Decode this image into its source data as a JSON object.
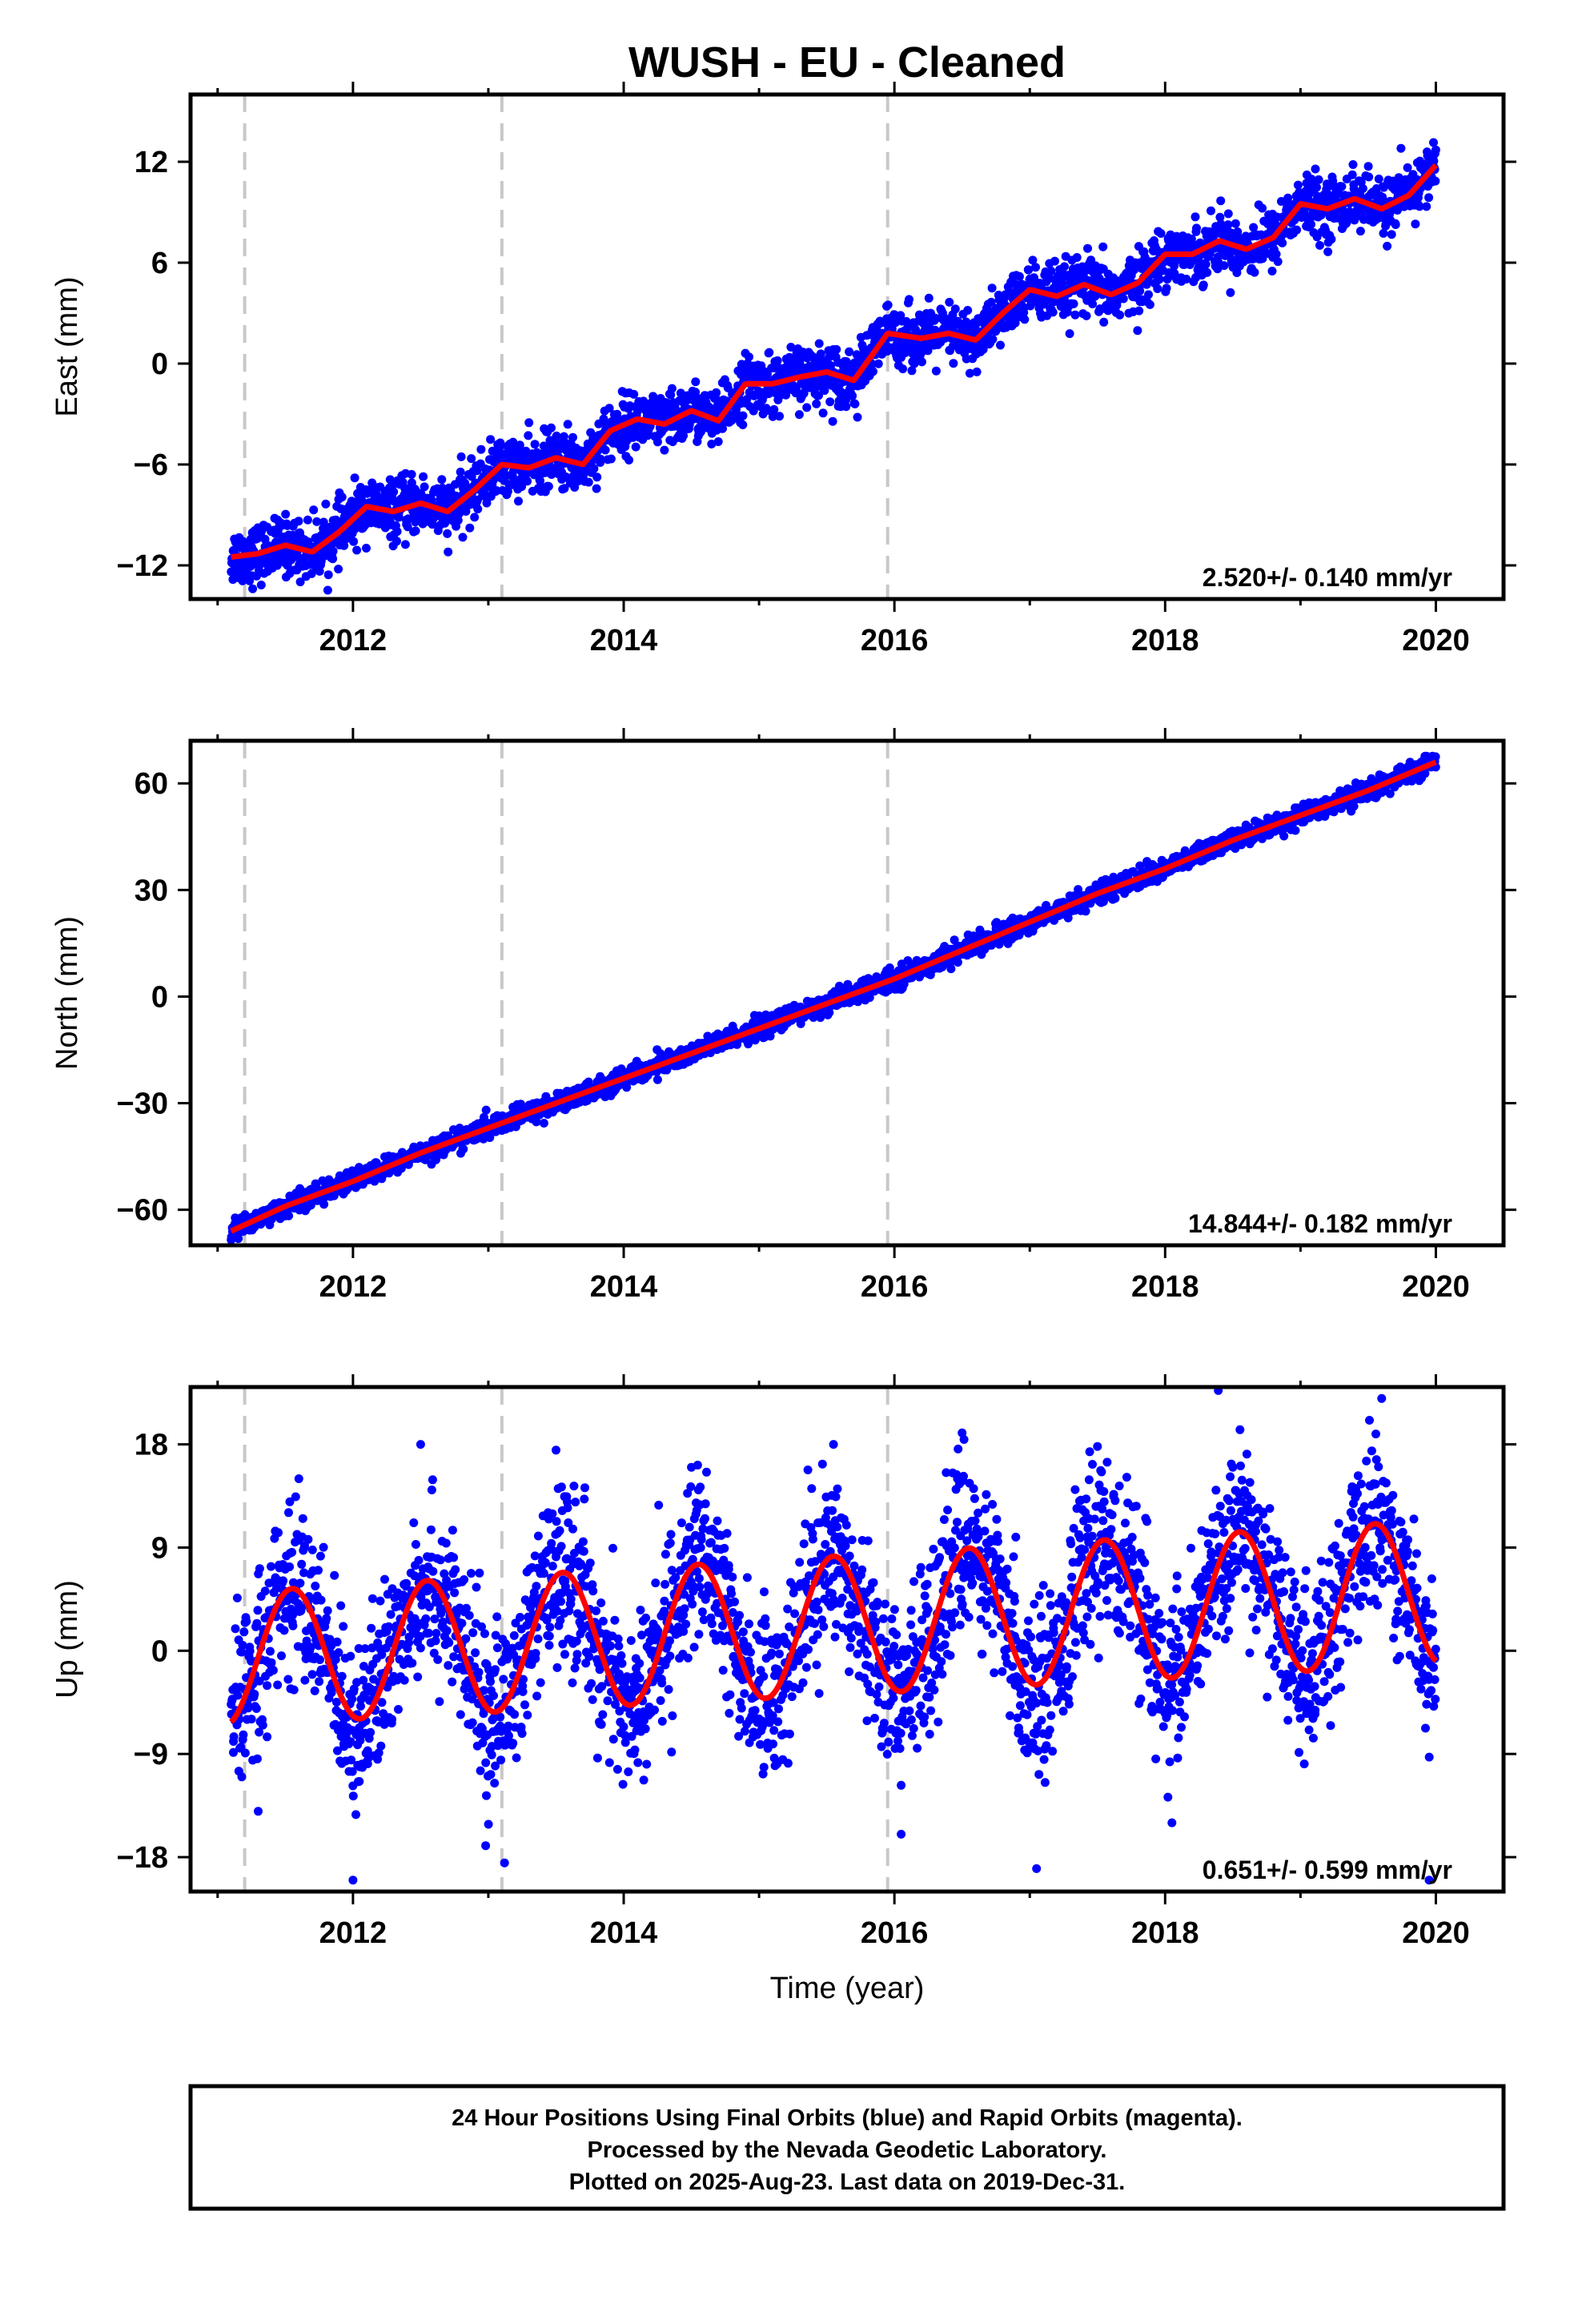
{
  "title": "WUSH  - EU - Cleaned",
  "x_axis_label": "Time (year)",
  "x_ticks": [
    2012,
    2014,
    2016,
    2018,
    2020
  ],
  "colors": {
    "observations": "#0000ff",
    "model": "#ff0000",
    "offset_lines": "#c8c8c8",
    "frame": "#000000"
  },
  "offset_epochs": [
    2011.2,
    2013.1,
    2015.95
  ],
  "chart_data": [
    {
      "type": "scatter",
      "panel": "east",
      "ylabel": "East (mm)",
      "ylim": [
        -14,
        16
      ],
      "xlim": [
        2010.8,
        2020.5
      ],
      "yticks": [
        -12,
        -6,
        0,
        6,
        12
      ],
      "rate_text": "2.520+/- 0.140 mm/yr",
      "x_range_data": [
        2011.1,
        2020.0
      ],
      "series": [
        {
          "name": "",
          "type": "line",
          "x": [
            2011.1,
            2011.3,
            2011.5,
            2011.7,
            2011.9,
            2012.1,
            2012.3,
            2012.5,
            2012.7,
            2012.9,
            2013.1,
            2013.3,
            2013.5,
            2013.7,
            2013.9,
            2014.1,
            2014.3,
            2014.5,
            2014.7,
            2014.9,
            2015.1,
            2015.3,
            2015.5,
            2015.7,
            2015.95,
            2016.2,
            2016.4,
            2016.6,
            2016.8,
            2017.0,
            2017.2,
            2017.4,
            2017.6,
            2017.8,
            2018.0,
            2018.2,
            2018.4,
            2018.6,
            2018.8,
            2019.0,
            2019.2,
            2019.4,
            2019.6,
            2019.8,
            2020.0
          ],
          "values": [
            -11.5,
            -11.3,
            -10.8,
            -11.2,
            -10.0,
            -8.5,
            -8.8,
            -8.3,
            -8.8,
            -7.5,
            -6.0,
            -6.2,
            -5.6,
            -6.0,
            -4.0,
            -3.3,
            -3.6,
            -2.8,
            -3.4,
            -1.2,
            -1.2,
            -0.8,
            -0.5,
            -1.0,
            1.8,
            1.5,
            1.8,
            1.4,
            3.0,
            4.4,
            4.0,
            4.7,
            4.1,
            4.8,
            6.5,
            6.5,
            7.3,
            6.8,
            7.5,
            9.5,
            9.2,
            9.8,
            9.2,
            10.0,
            11.8
          ]
        }
      ]
    },
    {
      "type": "scatter",
      "panel": "north",
      "ylabel": "North (mm)",
      "ylim": [
        -70,
        72
      ],
      "xlim": [
        2010.8,
        2020.5
      ],
      "yticks": [
        -60,
        -30,
        0,
        30,
        60
      ],
      "rate_text": "14.844+/- 0.182 mm/yr",
      "x_range_data": [
        2011.1,
        2020.0
      ],
      "series": [
        {
          "name": "",
          "type": "line",
          "x": [
            2011.1,
            2011.5,
            2012.0,
            2012.5,
            2013.0,
            2013.5,
            2014.0,
            2014.5,
            2015.0,
            2015.5,
            2016.0,
            2016.5,
            2017.0,
            2017.5,
            2018.0,
            2018.5,
            2019.0,
            2019.5,
            2020.0
          ],
          "values": [
            -66,
            -59,
            -52,
            -44,
            -37,
            -30,
            -23,
            -16,
            -9,
            -2,
            5,
            13,
            21,
            29,
            36,
            44,
            51,
            58,
            66
          ]
        }
      ]
    },
    {
      "type": "scatter",
      "panel": "up",
      "ylabel": "Up (mm)",
      "ylim": [
        -21,
        23
      ],
      "xlim": [
        2010.8,
        2020.5
      ],
      "yticks": [
        -18,
        -9,
        0,
        9,
        18
      ],
      "rate_text": "0.651+/- 0.599 mm/yr",
      "x_range_data": [
        2011.1,
        2020.0
      ],
      "seasonal_model": {
        "peak_year_fraction": 0.55,
        "amplitude_start": 5.8,
        "amplitude_end": 6.3,
        "offset_start": -0.7,
        "rate": 0.651
      },
      "outliers": [
        {
          "x": 2011.3,
          "y": -14
        },
        {
          "x": 2011.6,
          "y": 15
        },
        {
          "x": 2012.0,
          "y": -20
        },
        {
          "x": 2012.5,
          "y": 18
        },
        {
          "x": 2012.98,
          "y": -17
        },
        {
          "x": 2013.12,
          "y": -18.5
        },
        {
          "x": 2013.5,
          "y": 17.5
        },
        {
          "x": 2014.5,
          "y": 16
        },
        {
          "x": 2015.55,
          "y": 18
        },
        {
          "x": 2016.05,
          "y": -16
        },
        {
          "x": 2016.5,
          "y": 19
        },
        {
          "x": 2017.05,
          "y": -19
        },
        {
          "x": 2017.55,
          "y": 13
        },
        {
          "x": 2018.05,
          "y": -15
        },
        {
          "x": 2018.5,
          "y": 16
        },
        {
          "x": 2019.6,
          "y": 22
        },
        {
          "x": 2019.95,
          "y": -20
        }
      ]
    }
  ],
  "footer": {
    "line1": "24 Hour Positions Using Final Orbits (blue) and Rapid Orbits (magenta).",
    "line2": "Processed by the Nevada Geodetic Laboratory.",
    "line3": "Plotted on 2025-Aug-23. Last data on 2019-Dec-31."
  }
}
